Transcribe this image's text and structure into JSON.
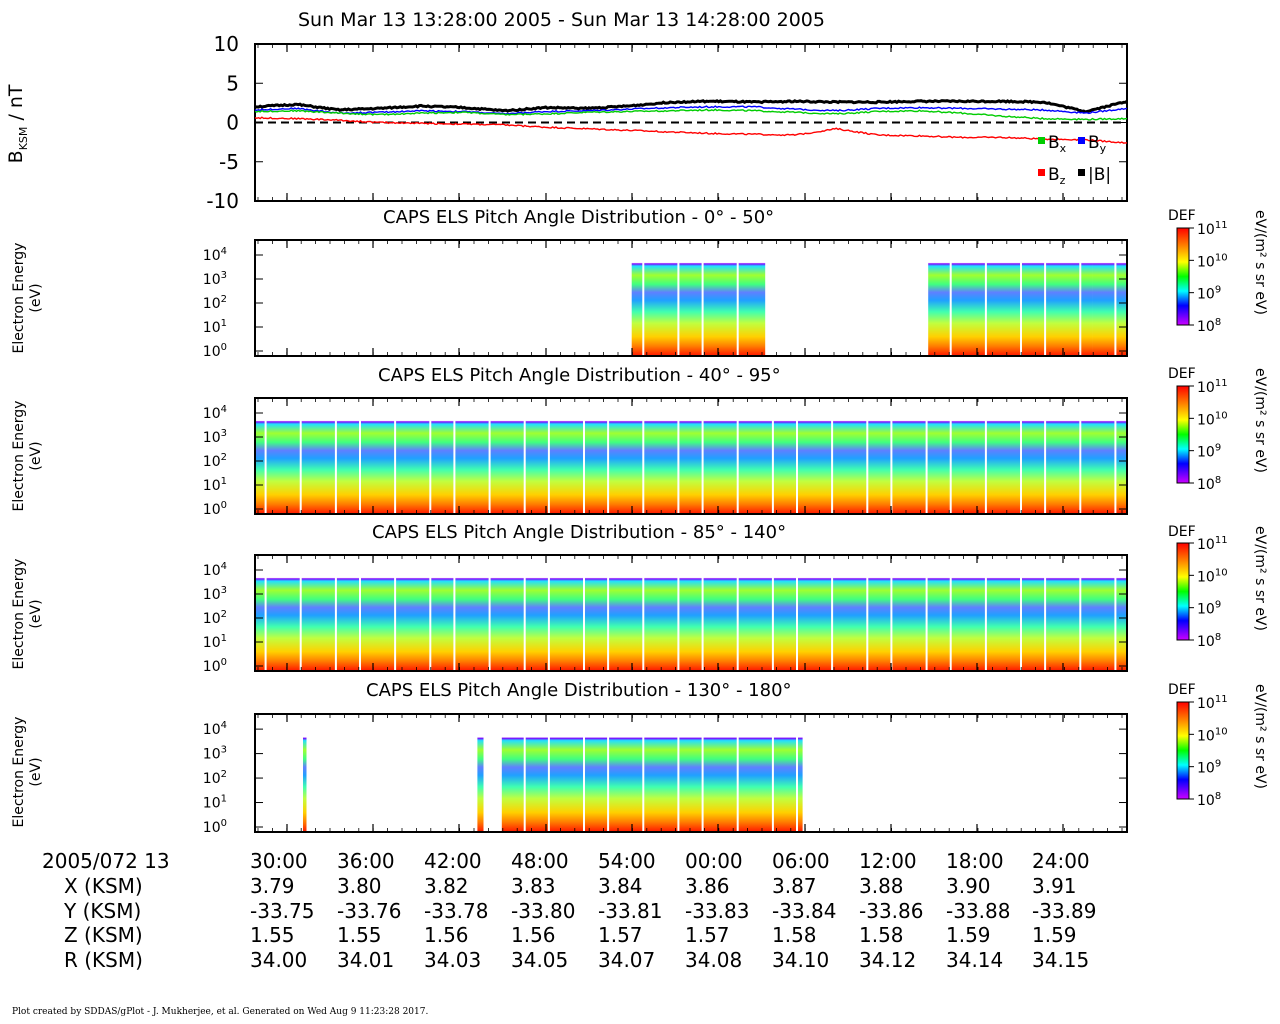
{
  "chart_data": [
    {
      "type": "line",
      "title": "Sun Mar 13 13:28:00 2005 - Sun Mar 13 14:28:00 2005",
      "ylabel": "B",
      "ylabel_sub": "KSM",
      "ylabel_unit": " / nT",
      "ylim": [
        -10,
        10
      ],
      "yticks": [
        "10",
        "5",
        "0",
        "-5",
        "-10"
      ],
      "zero_line": "dashed",
      "x": [
        "13:28",
        "13:30",
        "13:33",
        "13:36",
        "13:39",
        "13:42",
        "13:45",
        "13:48",
        "13:51",
        "13:54",
        "13:57",
        "14:00",
        "14:03",
        "14:06",
        "14:09",
        "14:12",
        "14:15",
        "14:18",
        "14:21",
        "14:24",
        "14:26",
        "14:28"
      ],
      "series": [
        {
          "name": "|B|",
          "color": "#000000",
          "values": [
            2.0,
            2.3,
            1.6,
            1.8,
            2.1,
            1.9,
            1.5,
            1.9,
            1.8,
            2.1,
            2.6,
            2.7,
            2.6,
            2.7,
            2.6,
            2.6,
            2.7,
            2.7,
            2.7,
            2.6,
            1.4,
            2.7
          ]
        },
        {
          "name": "By",
          "color": "#0000ff",
          "values": [
            1.6,
            1.8,
            1.2,
            1.3,
            1.5,
            1.4,
            1.1,
            1.4,
            1.5,
            1.7,
            1.9,
            2.0,
            2.0,
            1.7,
            1.5,
            1.8,
            1.9,
            1.8,
            1.7,
            1.6,
            1.2,
            1.8
          ]
        },
        {
          "name": "Bx",
          "color": "#00cc00",
          "values": [
            1.4,
            1.5,
            1.2,
            1.0,
            1.2,
            1.3,
            1.0,
            1.1,
            1.3,
            1.4,
            1.5,
            1.6,
            1.5,
            1.3,
            1.1,
            1.4,
            1.5,
            1.2,
            0.8,
            0.5,
            0.4,
            0.5
          ]
        },
        {
          "name": "Bz",
          "color": "#ff0000",
          "values": [
            0.6,
            0.5,
            0.3,
            0.0,
            -0.1,
            -0.2,
            -0.3,
            -0.6,
            -0.8,
            -1.0,
            -1.2,
            -1.4,
            -1.5,
            -1.6,
            -0.8,
            -1.6,
            -1.7,
            -1.9,
            -1.9,
            -2.1,
            -2.2,
            -2.6
          ]
        }
      ],
      "legend": [
        "Bx",
        "By",
        "Bz",
        "|B|"
      ],
      "legend_placement": "bottom-right"
    },
    {
      "type": "heatmap",
      "title": "CAPS ELS Pitch Angle Distribution - 0° - 50°",
      "ylabel": "Electron Energy\n(eV)",
      "yscale": "log",
      "coverage": [
        [
          0.432,
          0.575
        ],
        [
          0.569,
          0.585
        ],
        [
          0.772,
          0.96
        ],
        [
          0.96,
          0.992
        ],
        [
          0.96,
          1.0
        ]
      ]
    },
    {
      "type": "heatmap",
      "title": "CAPS ELS Pitch Angle Distribution - 40° - 95°",
      "ylabel": "Electron Energy\n(eV)",
      "yscale": "log",
      "coverage": [
        [
          0.0,
          1.0
        ]
      ]
    },
    {
      "type": "heatmap",
      "title": "CAPS ELS Pitch Angle Distribution - 85° - 140°",
      "ylabel": "Electron Energy\n(eV)",
      "yscale": "log",
      "coverage": [
        [
          0.0,
          1.0
        ]
      ]
    },
    {
      "type": "heatmap",
      "title": "CAPS ELS Pitch Angle Distribution - 130° - 180°",
      "ylabel": "Electron Energy\n(eV)",
      "yscale": "log",
      "coverage": [
        [
          0.055,
          0.059
        ],
        [
          0.255,
          0.262
        ],
        [
          0.283,
          0.628
        ]
      ]
    }
  ],
  "energy_ticks": [
    "10^4",
    "10^3",
    "10^2",
    "10^1",
    "10^0"
  ],
  "colorbar": {
    "title": "DEF",
    "unit": "eV/(m² s sr eV)",
    "ticks": [
      "10^11",
      "10^10",
      "10^9",
      "10^8"
    ]
  },
  "orbit": {
    "date_label": "2005/072 13",
    "times": [
      "30:00",
      "36:00",
      "42:00",
      "48:00",
      "54:00",
      "00:00",
      "06:00",
      "12:00",
      "18:00",
      "24:00"
    ],
    "rows": [
      {
        "label": "X (KSM)",
        "values": [
          "3.79",
          "3.80",
          "3.82",
          "3.83",
          "3.84",
          "3.86",
          "3.87",
          "3.88",
          "3.90",
          "3.91"
        ]
      },
      {
        "label": "Y (KSM)",
        "values": [
          "-33.75",
          "-33.76",
          "-33.78",
          "-33.80",
          "-33.81",
          "-33.83",
          "-33.84",
          "-33.86",
          "-33.88",
          "-33.89"
        ]
      },
      {
        "label": "Z (KSM)",
        "values": [
          "1.55",
          "1.55",
          "1.56",
          "1.56",
          "1.57",
          "1.57",
          "1.58",
          "1.58",
          "1.59",
          "1.59"
        ]
      },
      {
        "label": "R (KSM)",
        "values": [
          "34.00",
          "34.01",
          "34.03",
          "34.05",
          "34.07",
          "34.08",
          "34.10",
          "34.12",
          "34.14",
          "34.15"
        ]
      }
    ]
  },
  "footer": "Plot created by SDDAS/gPlot - J. Mukherjee, et al.  Generated on Wed Aug 9 11:23:28 2017."
}
